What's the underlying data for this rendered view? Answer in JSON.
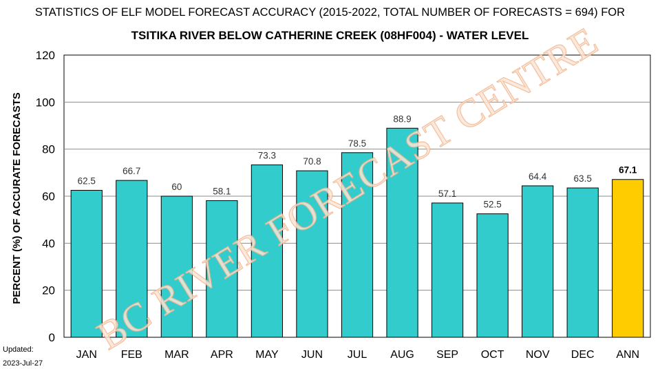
{
  "chart_data": {
    "type": "bar",
    "title": "STATISTICS OF ELF MODEL FORECAST ACCURACY (2015-2022, TOTAL NUMBER OF FORECASTS = 694) FOR",
    "subtitle": "TSITIKA RIVER BELOW CATHERINE CREEK (08HF004) - WATER LEVEL",
    "xlabel": "",
    "ylabel": "PERCENT (%) OF ACCURATE FORECASTS",
    "ylim": [
      0,
      120
    ],
    "yticks": [
      "0",
      "20",
      "40",
      "60",
      "80",
      "100",
      "120"
    ],
    "grid": true,
    "categories": [
      "JAN",
      "FEB",
      "MAR",
      "APR",
      "MAY",
      "JUN",
      "JUL",
      "AUG",
      "SEP",
      "OCT",
      "NOV",
      "DEC",
      "ANN"
    ],
    "values": [
      62.5,
      66.7,
      60,
      58.1,
      73.3,
      70.8,
      78.5,
      88.9,
      57.1,
      52.5,
      64.4,
      63.5,
      67.1
    ],
    "data_labels": [
      "62.5",
      "66.7",
      "60",
      "58.1",
      "73.3",
      "70.8",
      "78.5",
      "88.9",
      "57.1",
      "52.5",
      "64.4",
      "63.5",
      "67.1"
    ],
    "bar_color": "#33cccc",
    "highlight_color": "#ffcc00",
    "highlight_category": "ANN"
  },
  "watermark": "BC RIVER FORECAST CENTRE",
  "footer": {
    "updated_label": "Updated:",
    "updated_date": "2023-Jul-27"
  }
}
